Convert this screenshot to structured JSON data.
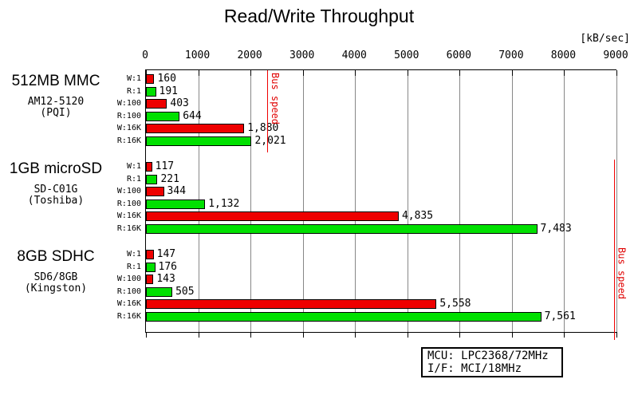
{
  "title": "Read/Write Throughput",
  "axis": {
    "unit_label": "[kB/sec]",
    "min": 0,
    "max": 9000,
    "ticks": [
      0,
      1000,
      2000,
      3000,
      4000,
      5000,
      6000,
      7000,
      8000,
      9000
    ]
  },
  "colors": {
    "write_bar": "#ee0000",
    "read_bar": "#00e000",
    "grid": "#878787",
    "bus_speed_line": "#f00000",
    "text": "#000000"
  },
  "chart_data": {
    "type": "bar",
    "orientation": "horizontal",
    "title": "Read/Write Throughput",
    "xlabel": "[kB/sec]",
    "xlim": [
      0,
      9000
    ],
    "grid": true,
    "row_labels": [
      "W:1",
      "R:1",
      "W:100",
      "R:100",
      "W:16K",
      "R:16K"
    ],
    "groups": [
      {
        "name": "512MB MMC",
        "model": "AM12-5120",
        "vendor": "(PQI)",
        "values": [
          160,
          191,
          403,
          644,
          1880,
          2021
        ],
        "value_labels": [
          "160",
          "191",
          "403",
          "644",
          "1,880",
          "2,021"
        ]
      },
      {
        "name": "1GB microSD",
        "model": "SD-C01G",
        "vendor": "(Toshiba)",
        "values": [
          117,
          221,
          344,
          1132,
          4835,
          7483
        ],
        "value_labels": [
          "117",
          "221",
          "344",
          "1,132",
          "4,835",
          "7,483"
        ]
      },
      {
        "name": "8GB SDHC",
        "model": "SD6/8GB",
        "vendor": "(Kingston)",
        "values": [
          147,
          176,
          143,
          505,
          5558,
          7561
        ],
        "value_labels": [
          "147",
          "176",
          "143",
          "505",
          "5,558",
          "7,561"
        ]
      }
    ],
    "bus_speed_lines": [
      {
        "label": "Bus speed",
        "value": 2320,
        "applies_to_groups": [
          0
        ]
      },
      {
        "label": "Bus speed",
        "value": 8950,
        "applies_to_groups": [
          1,
          2
        ]
      }
    ]
  },
  "info_box": {
    "lines": [
      "MCU: LPC2368/72MHz",
      "I/F: MCI/18MHz"
    ]
  }
}
